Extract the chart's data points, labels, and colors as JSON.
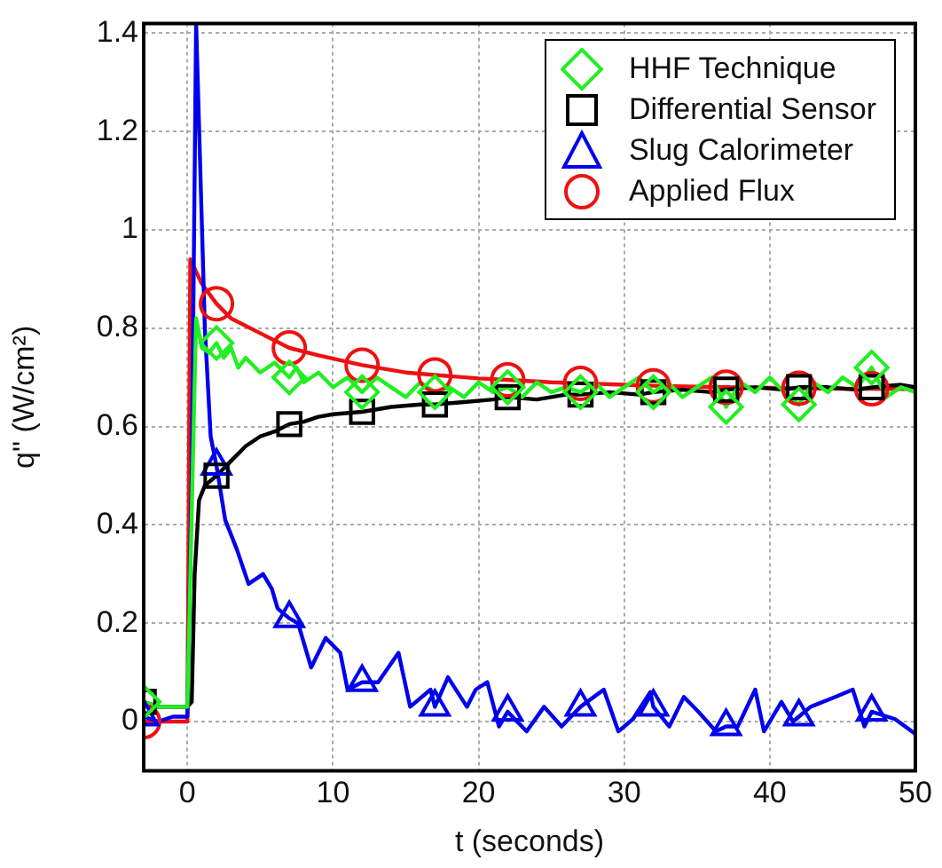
{
  "chart_data": {
    "type": "line",
    "xlabel": "t (seconds)",
    "ylabel": "q\" (W/cm²)",
    "xlim": [
      -3,
      50
    ],
    "ylim": [
      -0.1,
      1.42
    ],
    "xticks": [
      0,
      10,
      20,
      30,
      40,
      50
    ],
    "yticks": [
      0,
      0.2,
      0.4,
      0.6,
      0.8,
      1,
      1.2,
      1.4
    ],
    "grid": true,
    "legend": "top right",
    "line_style": "solid",
    "series": [
      {
        "name": "HHF Technique",
        "color": "#22ee22",
        "x": [
          -3,
          -2,
          -1,
          0,
          0.6,
          1,
          1.5,
          2,
          2.5,
          3,
          3.5,
          4,
          5,
          6,
          7,
          7.5,
          8,
          9,
          10,
          11,
          12,
          13,
          14,
          15,
          16,
          17,
          18,
          19,
          20,
          21,
          22,
          23,
          24,
          25,
          26,
          27,
          28,
          29,
          30,
          31,
          32,
          33,
          34,
          35,
          36,
          37,
          38,
          39,
          40,
          41,
          42,
          43,
          44,
          45,
          46,
          47,
          48,
          49,
          50
        ],
        "values": [
          0.04,
          0.03,
          0.03,
          0.03,
          0.82,
          0.76,
          0.75,
          0.77,
          0.74,
          0.76,
          0.72,
          0.74,
          0.71,
          0.73,
          0.7,
          0.72,
          0.69,
          0.71,
          0.68,
          0.7,
          0.67,
          0.7,
          0.68,
          0.66,
          0.69,
          0.67,
          0.68,
          0.66,
          0.69,
          0.67,
          0.68,
          0.66,
          0.69,
          0.67,
          0.68,
          0.67,
          0.69,
          0.66,
          0.68,
          0.7,
          0.67,
          0.69,
          0.66,
          0.68,
          0.7,
          0.64,
          0.69,
          0.67,
          0.7,
          0.67,
          0.645,
          0.69,
          0.67,
          0.7,
          0.68,
          0.72,
          0.66,
          0.68,
          0.67
        ]
      },
      {
        "name": "Differential Sensor",
        "color": "#000000",
        "x": [
          -3,
          -2,
          -1,
          0,
          0.3,
          0.5,
          0.8,
          1.2,
          2,
          3,
          4,
          5,
          6,
          7,
          8,
          9,
          10,
          12,
          14,
          16,
          17,
          19,
          21,
          22,
          24,
          26,
          27,
          29,
          31,
          32,
          34,
          36,
          37,
          39,
          41,
          42,
          44,
          46,
          47,
          49,
          50
        ],
        "values": [
          0.04,
          0.03,
          0.03,
          0.03,
          0.04,
          0.3,
          0.45,
          0.48,
          0.5,
          0.53,
          0.56,
          0.58,
          0.59,
          0.605,
          0.61,
          0.62,
          0.625,
          0.63,
          0.64,
          0.645,
          0.645,
          0.65,
          0.655,
          0.66,
          0.655,
          0.665,
          0.665,
          0.67,
          0.665,
          0.67,
          0.675,
          0.67,
          0.675,
          0.68,
          0.675,
          0.68,
          0.68,
          0.675,
          0.68,
          0.685,
          0.68
        ]
      },
      {
        "name": "Slug Calorimeter",
        "color": "#0000ee",
        "x": [
          -3,
          -2,
          -1,
          0,
          0.3,
          0.6,
          1.2,
          1.6,
          2,
          2.6,
          3.4,
          4.2,
          5.2,
          5.8,
          6.2,
          7,
          7.6,
          8.5,
          9.5,
          10.5,
          11,
          12,
          13.1,
          14.5,
          15.3,
          16.7,
          17,
          17.9,
          19.2,
          19.8,
          20.6,
          21.4,
          22,
          23.3,
          24.5,
          25.7,
          27,
          28.6,
          29.6,
          30.6,
          31.8,
          32,
          33.1,
          34.1,
          35.1,
          36.3,
          37,
          37.8,
          39,
          39.6,
          40.8,
          41.6,
          42,
          42.8,
          44.5,
          45.7,
          46.5,
          47,
          48.6,
          50
        ],
        "values": [
          0.01,
          0,
          0.01,
          0.01,
          0.5,
          1.42,
          0.8,
          0.58,
          0.52,
          0.41,
          0.35,
          0.28,
          0.3,
          0.27,
          0.23,
          0.21,
          0.2,
          0.11,
          0.17,
          0.14,
          0.065,
          0.08,
          0.08,
          0.14,
          0.03,
          0.065,
          0.03,
          0.09,
          0.03,
          0.065,
          0.08,
          -0.01,
          0.02,
          -0.02,
          0.03,
          -0.01,
          0.03,
          0.065,
          -0.02,
          0.005,
          0.06,
          0.03,
          -0.01,
          0.05,
          0.02,
          -0.02,
          -0.01,
          -0.01,
          0.065,
          -0.02,
          0.04,
          0,
          0.01,
          0.03,
          0.05,
          0.065,
          -0.01,
          0.02,
          0.005,
          -0.025
        ]
      },
      {
        "name": "Applied Flux",
        "color": "#ee1111",
        "x": [
          -3,
          -2,
          -1,
          0,
          0.2,
          1,
          2,
          3,
          5,
          7,
          9,
          12,
          15,
          17,
          20,
          22,
          25,
          27,
          30,
          32,
          35,
          37,
          40,
          42,
          45,
          47,
          50
        ],
        "values": [
          0,
          0,
          0,
          0,
          0.94,
          0.89,
          0.85,
          0.82,
          0.79,
          0.76,
          0.745,
          0.725,
          0.71,
          0.705,
          0.698,
          0.695,
          0.69,
          0.688,
          0.685,
          0.683,
          0.681,
          0.68,
          0.679,
          0.678,
          0.677,
          0.677,
          0.676
        ]
      },
      {
        "type": "scatter",
        "color": "#22ee22",
        "marker": "diamond",
        "x": [
          -3,
          2,
          7,
          12,
          17,
          22,
          27,
          32,
          37,
          42,
          47
        ],
        "values": [
          0.04,
          0.77,
          0.7,
          0.67,
          0.67,
          0.68,
          0.67,
          0.67,
          0.64,
          0.645,
          0.72
        ]
      },
      {
        "type": "scatter",
        "color": "#000000",
        "marker": "square",
        "x": [
          -3,
          2,
          7,
          12,
          17,
          22,
          27,
          32,
          37,
          42,
          47
        ],
        "values": [
          0.04,
          0.5,
          0.605,
          0.63,
          0.645,
          0.66,
          0.665,
          0.67,
          0.675,
          0.68,
          0.68
        ]
      },
      {
        "type": "scatter",
        "color": "#0000ee",
        "marker": "triangle",
        "x": [
          -3,
          2,
          7,
          12,
          17,
          22,
          27,
          32,
          37,
          42,
          47
        ],
        "values": [
          0.01,
          0.52,
          0.21,
          0.08,
          0.03,
          0.02,
          0.03,
          0.03,
          -0.01,
          0.01,
          0.02
        ]
      },
      {
        "type": "scatter",
        "color": "#ee1111",
        "marker": "circle",
        "x": [
          -3,
          2,
          7,
          12,
          17,
          22,
          27,
          32,
          37,
          42,
          47
        ],
        "values": [
          0,
          0.85,
          0.76,
          0.725,
          0.705,
          0.695,
          0.688,
          0.683,
          0.68,
          0.678,
          0.677
        ]
      }
    ]
  }
}
